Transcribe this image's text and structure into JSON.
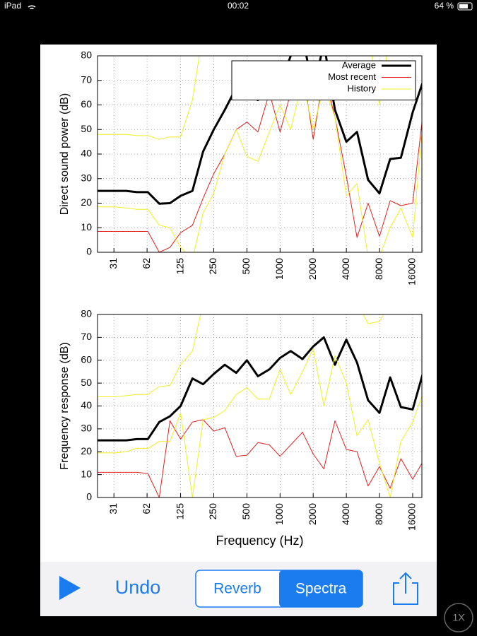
{
  "status_bar": {
    "device": "iPad",
    "time": "00:02",
    "battery": "64 %"
  },
  "chart_data": [
    {
      "type": "line",
      "ylabel": "Direct sound power (dB)",
      "xscale": "log",
      "grid": true,
      "legend": "top right",
      "x": [
        20,
        25,
        31.5,
        40,
        50,
        63,
        80,
        100,
        125,
        160,
        200,
        250,
        315,
        400,
        500,
        630,
        800,
        1000,
        1250,
        1600,
        2000,
        2500,
        3150,
        4000,
        5000,
        6300,
        8000,
        10000,
        12500,
        16000,
        20000
      ],
      "xlim": [
        22,
        19400
      ],
      "xticks": [
        31,
        62,
        125,
        250,
        500,
        1000,
        2000,
        4000,
        8000,
        16000
      ],
      "ylim": [
        0,
        80
      ],
      "yticks": [
        0,
        10,
        20,
        30,
        40,
        50,
        60,
        70,
        80
      ],
      "series": [
        {
          "name": "Average",
          "color": "#000000",
          "width": 3,
          "values": [
            25,
            25,
            25,
            25,
            24.5,
            24.5,
            19.8,
            20,
            23,
            25,
            41,
            50,
            58,
            67,
            64,
            62,
            68,
            68,
            80,
            88,
            66,
            85,
            58,
            45,
            49,
            29.5,
            24,
            38,
            38.5,
            57,
            70
          ]
        },
        {
          "name": "Most recent",
          "color": "#e02020",
          "width": 1,
          "values": [
            8.5,
            8.5,
            8.5,
            8.5,
            8.5,
            8.5,
            0,
            2,
            8,
            11,
            22,
            32,
            40,
            50,
            53,
            49,
            65,
            49,
            65,
            75,
            46,
            73,
            55,
            31,
            6,
            20,
            6.5,
            21,
            19,
            20,
            58
          ]
        },
        {
          "name": "History",
          "color": "#f0f020",
          "width": 1,
          "values": [
            18.5,
            18.5,
            18.5,
            18,
            17.5,
            17.5,
            11,
            10,
            2,
            -3,
            16,
            24,
            40,
            50,
            39,
            37,
            49,
            60,
            50,
            70,
            50,
            68,
            55,
            23,
            28,
            -2,
            -2,
            10,
            18,
            6,
            55
          ]
        },
        {
          "color": "#f0f020",
          "width": 1,
          "values": [
            48,
            48,
            48,
            48,
            47.5,
            47.5,
            46,
            47,
            47,
            62,
            90,
            null,
            null,
            null,
            null,
            null,
            null,
            null,
            null,
            null,
            null,
            null,
            null,
            null,
            null,
            90,
            60,
            90,
            null,
            null,
            null
          ]
        }
      ]
    },
    {
      "type": "line",
      "ylabel": "Frequency response (dB)",
      "xlabel": "Frequency (Hz)",
      "xscale": "log",
      "grid": true,
      "x": [
        20,
        25,
        31.5,
        40,
        50,
        63,
        80,
        100,
        125,
        160,
        200,
        250,
        315,
        400,
        500,
        630,
        800,
        1000,
        1250,
        1600,
        2000,
        2500,
        3150,
        4000,
        5000,
        6300,
        8000,
        10000,
        12500,
        16000,
        20000
      ],
      "xlim": [
        22,
        19400
      ],
      "xticks": [
        31,
        62,
        125,
        250,
        500,
        1000,
        2000,
        4000,
        8000,
        16000
      ],
      "ylim": [
        0,
        80
      ],
      "yticks": [
        0,
        10,
        20,
        30,
        40,
        50,
        60,
        70,
        80
      ],
      "series": [
        {
          "color": "#000000",
          "width": 3,
          "values": [
            25,
            25,
            25,
            25,
            25.5,
            25.5,
            33,
            35.5,
            40,
            52,
            49.5,
            54,
            58,
            54.5,
            60,
            53,
            56,
            61,
            64,
            60.5,
            66,
            70,
            58,
            69,
            59,
            42.5,
            37,
            52.5,
            39.5,
            38.5,
            55
          ]
        },
        {
          "color": "#e02020",
          "width": 1,
          "values": [
            11,
            11,
            11,
            11,
            11,
            10.5,
            0,
            33.5,
            25.5,
            33,
            34,
            29,
            30.5,
            18,
            18.5,
            24,
            23,
            18,
            23,
            28.5,
            19,
            12.5,
            33.5,
            21,
            20,
            5,
            13.5,
            4,
            17,
            8,
            16
          ]
        },
        {
          "color": "#f0f020",
          "width": 1,
          "values": [
            19.5,
            19.5,
            19.5,
            20,
            21.5,
            21.5,
            24.5,
            24.5,
            37,
            0,
            34,
            35,
            38,
            45,
            48,
            43,
            43,
            56,
            45,
            55,
            65,
            40,
            62,
            50,
            27,
            34,
            15,
            0,
            24.5,
            33,
            46
          ]
        },
        {
          "color": "#f0f020",
          "width": 1,
          "values": [
            44,
            44,
            44,
            44.5,
            45,
            45,
            48.5,
            49,
            58,
            64,
            85,
            null,
            null,
            null,
            null,
            null,
            null,
            null,
            null,
            null,
            null,
            null,
            null,
            null,
            85,
            76,
            77,
            85,
            null,
            null,
            null
          ]
        }
      ]
    }
  ],
  "toolbar": {
    "undo": "Undo",
    "segments": [
      "Reverb",
      "Spectra"
    ],
    "selected": 1
  },
  "zoom_button": "1X"
}
